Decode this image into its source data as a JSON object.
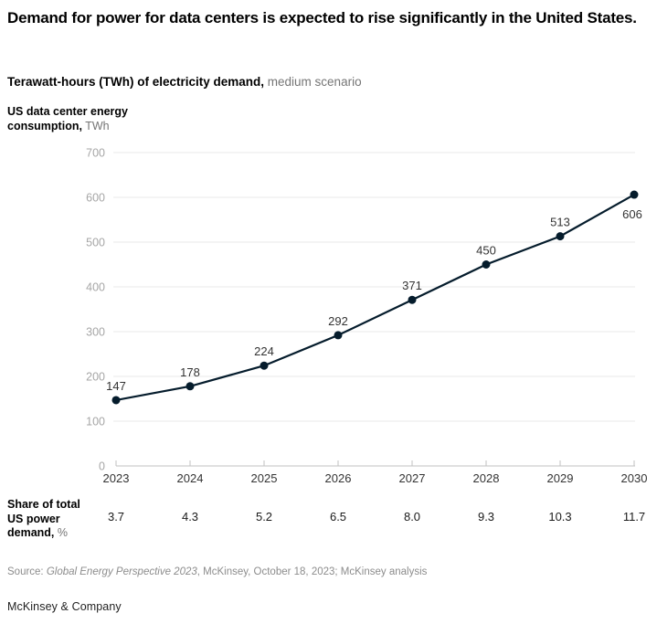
{
  "title": "Demand for power for data centers is expected to rise significantly in the United States.",
  "subtitle": {
    "bold": "Terawatt-hours (TWh) of electricity demand,",
    "regular": " medium scenario"
  },
  "y_axis_title": {
    "line1": "US data center energy",
    "line2_bold": "consumption,",
    "line2_unit": " TWh"
  },
  "chart_data": {
    "type": "line",
    "title": "US data center energy consumption, TWh",
    "x": [
      2023,
      2024,
      2025,
      2026,
      2027,
      2028,
      2029,
      2030
    ],
    "series": [
      {
        "name": "US data center energy consumption (TWh)",
        "values": [
          147,
          178,
          224,
          292,
          371,
          450,
          513,
          606
        ]
      }
    ],
    "point_labels": [
      "147",
      "178",
      "224",
      "292",
      "371",
      "450",
      "513",
      "606"
    ],
    "ylim": [
      0,
      700
    ],
    "yticks": [
      0,
      100,
      200,
      300,
      400,
      500,
      600,
      700
    ],
    "grid": true,
    "legend": "none",
    "line_color": "#051c2c",
    "secondary_row": {
      "label": "Share of total US power demand, %",
      "values": [
        "3.7",
        "4.3",
        "5.2",
        "6.5",
        "8.0",
        "9.3",
        "10.3",
        "11.7"
      ]
    }
  },
  "share_label": {
    "line1": "Share of total",
    "line2": "US power",
    "line3_bold": "demand,",
    "line3_unit": " %"
  },
  "source": {
    "prefix": "Source: ",
    "italic": "Global Energy Perspective 2023",
    "rest": ", McKinsey, October 18, 2023; McKinsey analysis"
  },
  "footer": "McKinsey & Company",
  "colors": {
    "line": "#051c2c",
    "point_label": "#333333",
    "ytick_label": "#a6a6a6",
    "gridline": "#e8e8e8",
    "axis": "#c2c2c2",
    "xtick_label": "#333333",
    "subtitle_gray": "#757575",
    "source_gray": "#8c8c8c"
  }
}
